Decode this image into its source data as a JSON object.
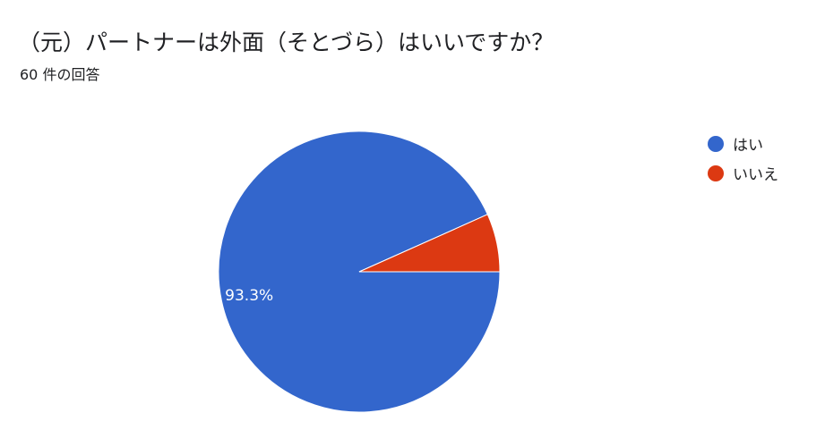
{
  "title": "（元）パートナーは外面（そとづら）はいいですか？",
  "subtitle": "60 件の回答",
  "chart_data": {
    "type": "pie",
    "title": "（元）パートナーは外面（そとづら）はいいですか？",
    "total_responses": 60,
    "categories": [
      "はい",
      "いいえ"
    ],
    "values": [
      93.3,
      6.7
    ],
    "colors": [
      "#3366cc",
      "#dc3912"
    ],
    "data_labels": [
      "93.3%",
      ""
    ],
    "legend_position": "right"
  }
}
